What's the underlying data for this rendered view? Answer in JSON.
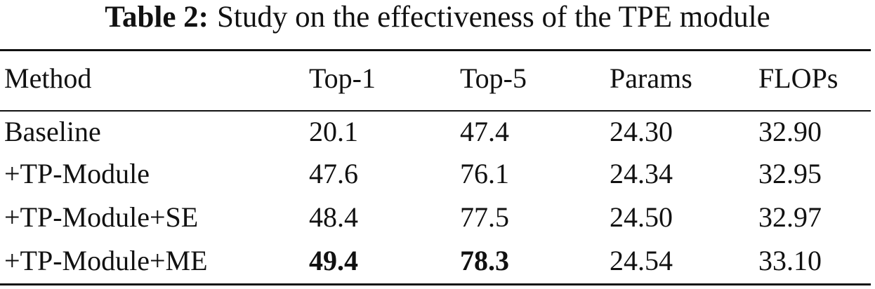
{
  "caption": {
    "label": "Table 2:",
    "text": "Study on the effectiveness of the TPE module"
  },
  "table": {
    "header": [
      "Method",
      "Top-1",
      "Top-5",
      "Params",
      "FLOPs"
    ],
    "rows": [
      [
        "Baseline",
        "20.1",
        "47.4",
        "24.30",
        "32.90"
      ],
      [
        "+TP-Module",
        "47.6",
        "76.1",
        "24.34",
        "32.95"
      ],
      [
        "+TP-Module+SE",
        "48.4",
        "77.5",
        "24.50",
        "32.97"
      ],
      [
        "+TP-Module+ME",
        "49.4",
        "78.3",
        "24.54",
        "33.10"
      ]
    ]
  }
}
